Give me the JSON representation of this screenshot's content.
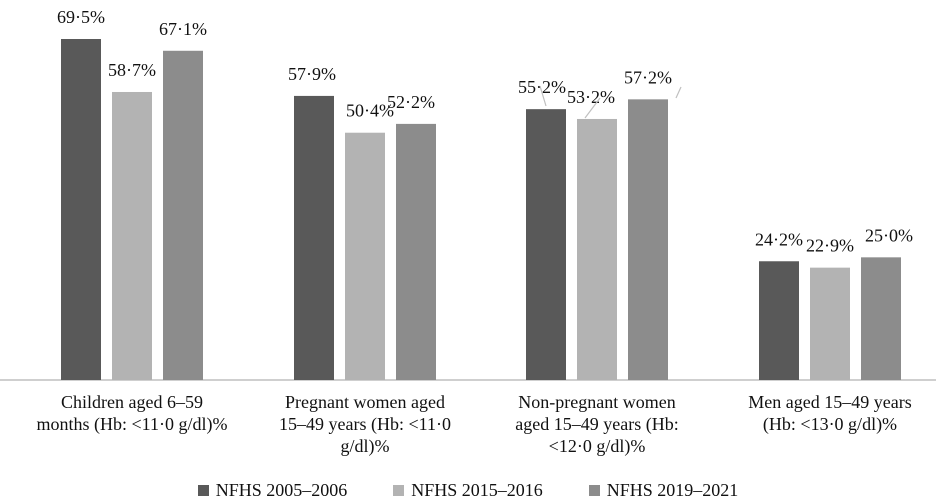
{
  "chart_data": {
    "type": "bar",
    "categories": [
      [
        "Children aged 6–59",
        "months (Hb: <11·0 g/dl)%"
      ],
      [
        "Pregnant women aged",
        "15–49 years (Hb: <11·0",
        "g/dl)%"
      ],
      [
        "Non-pregnant women",
        "aged 15–49 years (Hb:",
        "<12·0 g/dl)%"
      ],
      [
        "Men aged 15–49 years",
        "(Hb: <13·0 g/dl)%"
      ]
    ],
    "series": [
      {
        "name": "NFHS 2005–2006",
        "color": "#595959",
        "values": [
          69.5,
          57.9,
          55.2,
          24.2
        ],
        "labels": [
          "69·5%",
          "57·9%",
          "55·2%",
          "24·2%"
        ]
      },
      {
        "name": "NFHS 2015–2016",
        "color": "#b3b3b3",
        "values": [
          58.7,
          50.4,
          53.2,
          22.9
        ],
        "labels": [
          "58·7%",
          "50·4%",
          "53·2%",
          "22·9%"
        ]
      },
      {
        "name": "NFHS 2019–2021",
        "color": "#8c8c8c",
        "values": [
          67.1,
          52.2,
          57.2,
          25.0
        ],
        "labels": [
          "67·1%",
          "52·2%",
          "57·2%",
          "25·0%"
        ]
      }
    ],
    "ylim": [
      0,
      70
    ],
    "grid": false,
    "legend": "bottom"
  }
}
